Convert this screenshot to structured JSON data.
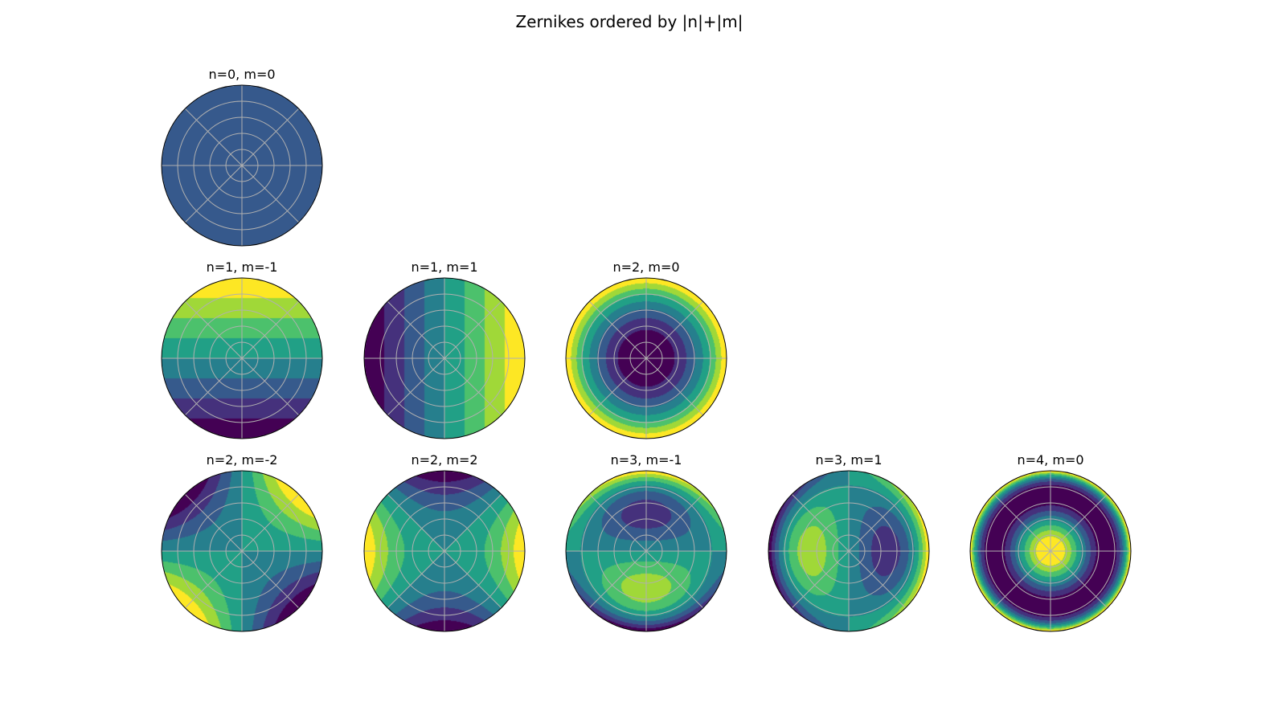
{
  "chart_data": {
    "type": "heatmap",
    "title": "Zernikes ordered by |n|+|m|",
    "colormap": "viridis",
    "grid": true,
    "panels": [
      {
        "label": "n=0, m=0",
        "n": 0,
        "m": 0,
        "row": 0,
        "col": 0
      },
      {
        "label": "n=1, m=-1",
        "n": 1,
        "m": -1,
        "row": 1,
        "col": 0
      },
      {
        "label": "n=1, m=1",
        "n": 1,
        "m": 1,
        "row": 1,
        "col": 1
      },
      {
        "label": "n=2, m=0",
        "n": 2,
        "m": 0,
        "row": 1,
        "col": 2
      },
      {
        "label": "n=2, m=-2",
        "n": 2,
        "m": -2,
        "row": 2,
        "col": 0
      },
      {
        "label": "n=2, m=2",
        "n": 2,
        "m": 2,
        "row": 2,
        "col": 1
      },
      {
        "label": "n=3, m=-1",
        "n": 3,
        "m": -1,
        "row": 2,
        "col": 2
      },
      {
        "label": "n=3, m=1",
        "n": 3,
        "m": 1,
        "row": 2,
        "col": 3
      },
      {
        "label": "n=4, m=0",
        "n": 4,
        "m": 0,
        "row": 2,
        "col": 4
      }
    ]
  }
}
